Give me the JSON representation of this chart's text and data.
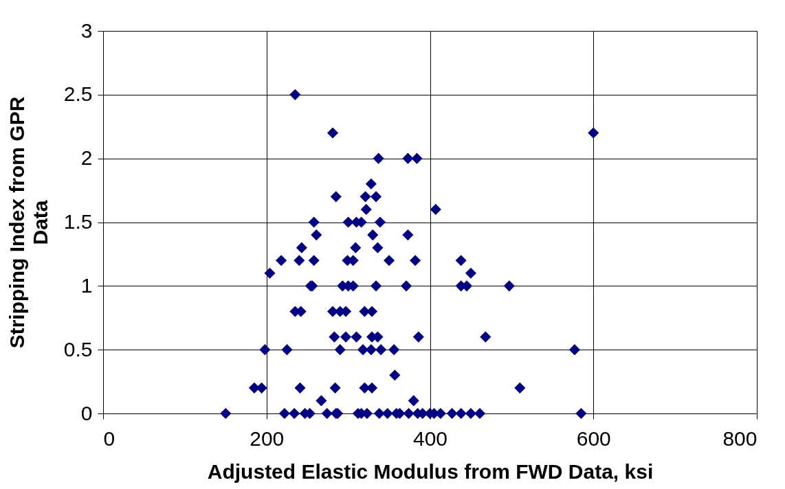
{
  "chart_data": {
    "type": "scatter",
    "xlabel": "Adjusted Elastic Modulus from FWD Data, ksi",
    "ylabel": "Stripping Index from GPR Data",
    "x": [
      235,
      281,
      600,
      337,
      373,
      384,
      328,
      285,
      321,
      334,
      322,
      407,
      258,
      300,
      310,
      316,
      339,
      261,
      330,
      373,
      243,
      336,
      309,
      218,
      240,
      258,
      299,
      306,
      382,
      350,
      438,
      204,
      450,
      254,
      256,
      293,
      300,
      306,
      334,
      371,
      438,
      445,
      497,
      235,
      242,
      281,
      290,
      297,
      320,
      329,
      283,
      297,
      310,
      329,
      336,
      386,
      468,
      198,
      225,
      290,
      318,
      328,
      340,
      356,
      577,
      357,
      185,
      194,
      241,
      284,
      320,
      329,
      510,
      267,
      380,
      150,
      222,
      234,
      247,
      253,
      274,
      285,
      287,
      312,
      316,
      323,
      338,
      348,
      359,
      363,
      374,
      385,
      391,
      400,
      405,
      413,
      427,
      438,
      450,
      461,
      585
    ],
    "series": [
      {
        "color": "#000080",
        "values": [
          2.5,
          2.2,
          2.2,
          2.0,
          2.0,
          2.0,
          1.8,
          1.7,
          1.7,
          1.7,
          1.6,
          1.6,
          1.5,
          1.5,
          1.5,
          1.5,
          1.5,
          1.4,
          1.4,
          1.4,
          1.3,
          1.3,
          1.3,
          1.2,
          1.2,
          1.2,
          1.2,
          1.2,
          1.2,
          1.2,
          1.2,
          1.1,
          1.1,
          1.0,
          1.0,
          1.0,
          1.0,
          1.0,
          1.0,
          1.0,
          1.0,
          1.0,
          1.0,
          0.8,
          0.8,
          0.8,
          0.8,
          0.8,
          0.8,
          0.8,
          0.6,
          0.6,
          0.6,
          0.6,
          0.6,
          0.6,
          0.6,
          0.5,
          0.5,
          0.5,
          0.5,
          0.5,
          0.5,
          0.5,
          0.5,
          0.3,
          0.2,
          0.2,
          0.2,
          0.2,
          0.2,
          0.2,
          0.2,
          0.1,
          0.1,
          0,
          0,
          0,
          0,
          0,
          0,
          0,
          0,
          0,
          0,
          0,
          0,
          0,
          0,
          0,
          0,
          0,
          0,
          0,
          0,
          0,
          0,
          0,
          0,
          0,
          0
        ]
      }
    ],
    "xlim": [
      0,
      800
    ],
    "xticks": [
      0,
      200,
      400,
      600,
      800
    ],
    "ylim": [
      0,
      3
    ],
    "yticks": [
      0,
      0.5,
      1,
      1.5,
      2,
      2.5,
      3
    ],
    "grid": true,
    "marker": "diamond"
  }
}
